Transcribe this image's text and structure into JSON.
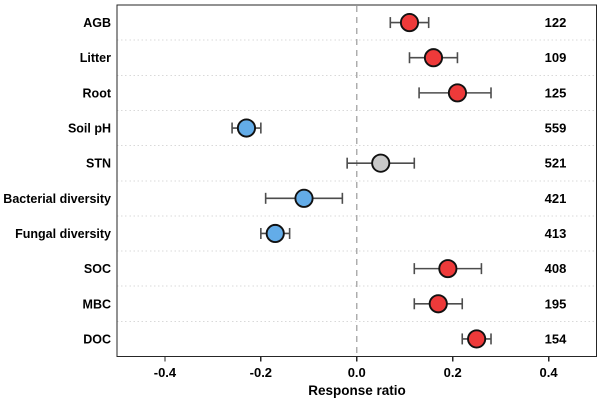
{
  "chart_data": {
    "type": "scatter",
    "subtype": "forest-plot-with-error-bars",
    "title": "",
    "xlabel": "Response ratio",
    "ylabel": "",
    "xlim": [
      -0.5,
      0.5
    ],
    "xtick_values": [
      -0.4,
      -0.2,
      0.0,
      0.2,
      0.4
    ],
    "xtick_labels": [
      "-0.4",
      "-0.2",
      "0.0",
      "0.2",
      "0.4"
    ],
    "grid": "dotted horizontal separators between rows",
    "legend_position": "none",
    "zero_line": {
      "value": 0.0,
      "style": "dashed"
    },
    "categories": [
      "AGB",
      "Litter",
      "Root",
      "Soil pH",
      "STN",
      "Bacterial diversity",
      "Fungal diversity",
      "SOC",
      "MBC",
      "DOC"
    ],
    "points": [
      {
        "category": "AGB",
        "mean": 0.11,
        "ci_low": 0.07,
        "ci_high": 0.15,
        "n": 122,
        "color": "red"
      },
      {
        "category": "Litter",
        "mean": 0.16,
        "ci_low": 0.11,
        "ci_high": 0.21,
        "n": 109,
        "color": "red"
      },
      {
        "category": "Root",
        "mean": 0.21,
        "ci_low": 0.13,
        "ci_high": 0.28,
        "n": 125,
        "color": "red"
      },
      {
        "category": "Soil pH",
        "mean": -0.23,
        "ci_low": -0.26,
        "ci_high": -0.2,
        "n": 559,
        "color": "blue"
      },
      {
        "category": "STN",
        "mean": 0.05,
        "ci_low": -0.02,
        "ci_high": 0.12,
        "n": 521,
        "color": "gray"
      },
      {
        "category": "Bacterial diversity",
        "mean": -0.11,
        "ci_low": -0.19,
        "ci_high": -0.03,
        "n": 421,
        "color": "blue"
      },
      {
        "category": "Fungal diversity",
        "mean": -0.17,
        "ci_low": -0.2,
        "ci_high": -0.14,
        "n": 413,
        "color": "blue"
      },
      {
        "category": "SOC",
        "mean": 0.19,
        "ci_low": 0.12,
        "ci_high": 0.26,
        "n": 408,
        "color": "red"
      },
      {
        "category": "MBC",
        "mean": 0.17,
        "ci_low": 0.12,
        "ci_high": 0.22,
        "n": 195,
        "color": "red"
      },
      {
        "category": "DOC",
        "mean": 0.25,
        "ci_low": 0.22,
        "ci_high": 0.28,
        "n": 154,
        "color": "red"
      }
    ],
    "colors": {
      "red": "#ee3a3a",
      "blue": "#63ace8",
      "gray": "#c9c9c9",
      "point_stroke": "#111111",
      "error_bar": "#4d4d4d",
      "grid": "#d9d9d9",
      "zero_line": "#a9a9a9",
      "box": "#262626",
      "text": "#000000"
    }
  }
}
